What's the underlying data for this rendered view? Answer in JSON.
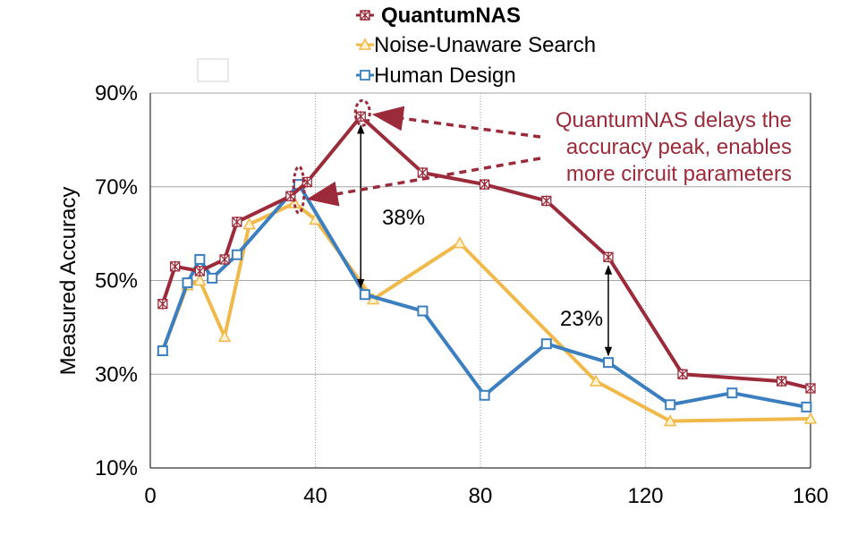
{
  "chart_data": {
    "type": "line",
    "title": "",
    "xlabel": "",
    "ylabel": "Measured Accuracy",
    "xlim": [
      0,
      160
    ],
    "ylim": [
      10,
      90
    ],
    "x_ticks": [
      "0",
      "40",
      "80",
      "120",
      "160"
    ],
    "y_ticks": [
      "10%",
      "30%",
      "50%",
      "70%",
      "90%"
    ],
    "x_tick_values": [
      0,
      40,
      80,
      120,
      160
    ],
    "y_tick_values": [
      10,
      30,
      50,
      70,
      90
    ],
    "grid": "horizontal gridlines; vertical dotted gridlines",
    "legend_position": "top-center",
    "series": [
      {
        "name": "QuantumNAS",
        "color": "#9b2b3a",
        "marker": "asterisk-square",
        "x": [
          3,
          6,
          12,
          18,
          21,
          34,
          38,
          51,
          66,
          81,
          96,
          111,
          129,
          153,
          160
        ],
        "y": [
          45,
          53,
          52,
          54.5,
          62.5,
          68,
          71,
          85,
          73,
          70.5,
          67,
          55,
          30,
          28.5,
          27
        ]
      },
      {
        "name": "Noise-Unaware Search",
        "color": "#f0b94a",
        "marker": "triangle",
        "x": [
          3,
          9,
          12,
          18,
          24,
          35,
          40,
          54,
          75,
          108,
          126,
          160
        ],
        "y": [
          35,
          49,
          50,
          38,
          62,
          66.5,
          63,
          46,
          58,
          28.5,
          20,
          20.5
        ]
      },
      {
        "name": "Human Design",
        "color": "#3b7fc0",
        "marker": "square",
        "x": [
          3,
          9,
          12,
          15,
          21,
          36,
          52,
          66,
          81,
          96,
          111,
          126,
          141,
          159
        ],
        "y": [
          35,
          49.5,
          54.5,
          50.5,
          55.5,
          70.5,
          47,
          43.5,
          25.5,
          36.5,
          32.5,
          23.5,
          26,
          23
        ]
      }
    ],
    "annotations": {
      "note": [
        "QuantumNAS delays the",
        "accuracy peak, enables",
        "more circuit parameters"
      ],
      "gap1_label": "38%",
      "gap1_x": 51,
      "gap1_y": [
        47,
        85
      ],
      "gap2_label": "23%",
      "gap2_x": 111,
      "gap2_y": [
        32.5,
        55
      ]
    }
  }
}
